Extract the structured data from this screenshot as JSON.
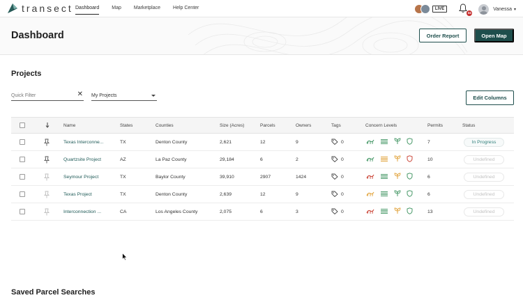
{
  "brand": {
    "name": "transect"
  },
  "nav": {
    "links": [
      {
        "label": "Dashboard",
        "active": true
      },
      {
        "label": "Map",
        "active": false
      },
      {
        "label": "Marketplace",
        "active": false
      },
      {
        "label": "Help Center",
        "active": false
      }
    ],
    "live_label": "LIVE",
    "notifications_count": "34",
    "user_name": "Vanessa"
  },
  "header": {
    "title": "Dashboard",
    "order_report_label": "Order Report",
    "open_map_label": "Open Map"
  },
  "projects": {
    "title": "Projects",
    "quick_filter_placeholder": "Quick Filter",
    "select_value": "My Projects",
    "edit_columns_label": "Edit Columns",
    "columns": {
      "name": "Name",
      "states": "States",
      "counties": "Counties",
      "size": "Size (Acres)",
      "parcels": "Parcels",
      "owners": "Owners",
      "tags": "Tags",
      "concern": "Concern Levels",
      "permits": "Permits",
      "status": "Status"
    },
    "rows": [
      {
        "name": "Texas Interconne...",
        "state": "TX",
        "county": "Denton County",
        "size": "2,621",
        "parcels": "12",
        "owners": "9",
        "tags": "0",
        "permits": "7",
        "status": "In Progress",
        "pinned": true,
        "concern": [
          "#4a9a6a",
          "#4a9a6a",
          "#4a9a6a",
          "#4a9a6a"
        ]
      },
      {
        "name": "Quartzsite Project",
        "state": "AZ",
        "county": "La Paz County",
        "size": "29,184",
        "parcels": "6",
        "owners": "2",
        "tags": "0",
        "permits": "10",
        "status": "Undefined",
        "pinned": true,
        "concern": [
          "#4a9a6a",
          "#e2a540",
          "#e2a540",
          "#cc4a3d"
        ]
      },
      {
        "name": "Seymour Project",
        "state": "TX",
        "county": "Baylor County",
        "size": "39,910",
        "parcels": "2907",
        "owners": "1424",
        "tags": "0",
        "permits": "6",
        "status": "Undefined",
        "pinned": false,
        "concern": [
          "#cc4a3d",
          "#4a9a6a",
          "#e2a540",
          "#4a9a6a"
        ]
      },
      {
        "name": "Texas Project",
        "state": "TX",
        "county": "Denton County",
        "size": "2,639",
        "parcels": "12",
        "owners": "9",
        "tags": "0",
        "permits": "6",
        "status": "Undefined",
        "pinned": false,
        "concern": [
          "#e2a540",
          "#4a9a6a",
          "#4a9a6a",
          "#4a9a6a"
        ]
      },
      {
        "name": "Interconnection ...",
        "state": "CA",
        "county": "Los Angeles County",
        "size": "2,075",
        "parcels": "6",
        "owners": "3",
        "tags": "0",
        "permits": "13",
        "status": "Undefined",
        "pinned": false,
        "concern": [
          "#cc4a3d",
          "#4a9a6a",
          "#e2a540",
          "#4a9a6a"
        ]
      }
    ]
  },
  "saved_searches": {
    "title": "Saved Parcel Searches"
  }
}
